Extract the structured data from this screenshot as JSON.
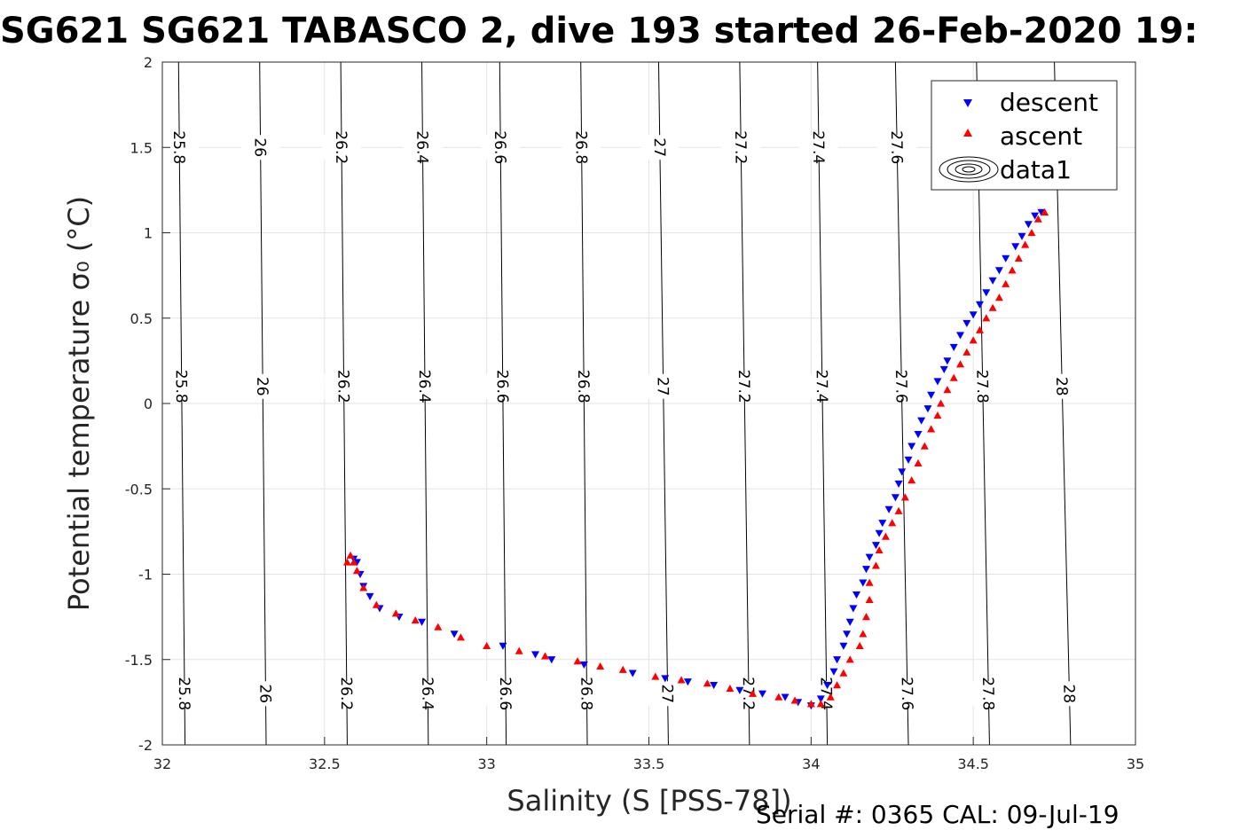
{
  "chart_data": {
    "type": "scatter",
    "title": "SG621 SG621 TABASCO 2, dive 193 started 26-Feb-2020 19:",
    "xlabel": "Salinity (S [PSS-78])",
    "ylabel": "Potential temperature σ₀ (°C)",
    "xlim": [
      32,
      35
    ],
    "ylim": [
      -2,
      2
    ],
    "x_ticks": [
      "32",
      "32.5",
      "33",
      "33.5",
      "34",
      "34.5",
      "35"
    ],
    "y_ticks": [
      "2",
      "1.5",
      "1",
      "0.5",
      "0",
      "-0.5",
      "-1",
      "-1.5",
      "-2"
    ],
    "grid": true,
    "legend_position": "top-right",
    "legend": [
      {
        "name": "descent",
        "marker": "triangle-down",
        "color": "#0000ff"
      },
      {
        "name": "ascent",
        "marker": "triangle-up",
        "color": "#ff0000"
      },
      {
        "name": "data1",
        "marker": "contour",
        "color": "#000000"
      }
    ],
    "isopycnals": {
      "levels": [
        25.8,
        26,
        26.2,
        26.4,
        26.6,
        26.8,
        27,
        27.2,
        27.4,
        27.6,
        27.8,
        28
      ],
      "labels": [
        "25.8",
        "26",
        "26.2",
        "26.4",
        "26.6",
        "26.8",
        "27",
        "27.2",
        "27.4",
        "27.6",
        "27.8",
        "28"
      ],
      "salinity_at_minus2": [
        32.07,
        32.32,
        32.57,
        32.82,
        33.06,
        33.31,
        33.56,
        33.81,
        34.05,
        34.3,
        34.55,
        34.8
      ],
      "salinity_at_2": [
        32.05,
        32.3,
        32.55,
        32.8,
        33.04,
        33.29,
        33.53,
        33.78,
        34.02,
        34.26,
        34.51,
        34.75
      ],
      "label_temps": [
        -1.7,
        0.1,
        1.5
      ]
    },
    "series": [
      {
        "name": "descent",
        "color": "#0000ff",
        "marker": "triangle-down",
        "points": [
          [
            34.71,
            1.12
          ],
          [
            34.69,
            1.1
          ],
          [
            34.67,
            1.05
          ],
          [
            34.65,
            0.98
          ],
          [
            34.63,
            0.92
          ],
          [
            34.6,
            0.85
          ],
          [
            34.58,
            0.78
          ],
          [
            34.56,
            0.72
          ],
          [
            34.54,
            0.65
          ],
          [
            34.52,
            0.58
          ],
          [
            34.5,
            0.52
          ],
          [
            34.48,
            0.47
          ],
          [
            34.46,
            0.4
          ],
          [
            34.44,
            0.33
          ],
          [
            34.42,
            0.25
          ],
          [
            34.41,
            0.2
          ],
          [
            34.39,
            0.13
          ],
          [
            34.37,
            0.05
          ],
          [
            34.36,
            -0.03
          ],
          [
            34.34,
            -0.1
          ],
          [
            34.33,
            -0.18
          ],
          [
            34.31,
            -0.25
          ],
          [
            34.3,
            -0.33
          ],
          [
            34.28,
            -0.4
          ],
          [
            34.27,
            -0.47
          ],
          [
            34.26,
            -0.55
          ],
          [
            34.24,
            -0.62
          ],
          [
            34.22,
            -0.7
          ],
          [
            34.21,
            -0.76
          ],
          [
            34.2,
            -0.83
          ],
          [
            34.18,
            -0.9
          ],
          [
            34.17,
            -0.97
          ],
          [
            34.16,
            -1.05
          ],
          [
            34.14,
            -1.12
          ],
          [
            34.13,
            -1.2
          ],
          [
            34.12,
            -1.28
          ],
          [
            34.11,
            -1.35
          ],
          [
            34.1,
            -1.42
          ],
          [
            34.08,
            -1.5
          ],
          [
            34.07,
            -1.57
          ],
          [
            34.05,
            -1.65
          ],
          [
            34.03,
            -1.73
          ],
          [
            34.0,
            -1.77
          ],
          [
            33.96,
            -1.75
          ],
          [
            33.92,
            -1.72
          ],
          [
            33.85,
            -1.7
          ],
          [
            33.78,
            -1.68
          ],
          [
            33.7,
            -1.65
          ],
          [
            33.62,
            -1.63
          ],
          [
            33.55,
            -1.61
          ],
          [
            33.45,
            -1.58
          ],
          [
            33.3,
            -1.53
          ],
          [
            33.2,
            -1.5
          ],
          [
            33.15,
            -1.47
          ],
          [
            33.05,
            -1.42
          ],
          [
            32.9,
            -1.35
          ],
          [
            32.8,
            -1.28
          ],
          [
            32.73,
            -1.25
          ],
          [
            32.67,
            -1.2
          ],
          [
            32.64,
            -1.13
          ],
          [
            32.62,
            -1.07
          ],
          [
            32.61,
            -1.0
          ],
          [
            32.6,
            -0.93
          ],
          [
            32.59,
            -0.91
          ]
        ]
      },
      {
        "name": "ascent",
        "color": "#ff0000",
        "marker": "triangle-up",
        "points": [
          [
            34.72,
            1.12
          ],
          [
            34.7,
            1.08
          ],
          [
            34.68,
            1.0
          ],
          [
            34.66,
            0.93
          ],
          [
            34.64,
            0.85
          ],
          [
            34.62,
            0.78
          ],
          [
            34.6,
            0.7
          ],
          [
            34.58,
            0.62
          ],
          [
            34.56,
            0.56
          ],
          [
            34.54,
            0.5
          ],
          [
            34.52,
            0.43
          ],
          [
            34.5,
            0.37
          ],
          [
            34.48,
            0.3
          ],
          [
            34.46,
            0.23
          ],
          [
            34.44,
            0.15
          ],
          [
            34.42,
            0.08
          ],
          [
            34.4,
            0.0
          ],
          [
            34.39,
            -0.07
          ],
          [
            34.37,
            -0.15
          ],
          [
            34.35,
            -0.25
          ],
          [
            34.33,
            -0.35
          ],
          [
            34.31,
            -0.45
          ],
          [
            34.29,
            -0.55
          ],
          [
            34.27,
            -0.63
          ],
          [
            34.25,
            -0.7
          ],
          [
            34.23,
            -0.78
          ],
          [
            34.21,
            -0.86
          ],
          [
            34.2,
            -0.95
          ],
          [
            34.18,
            -1.05
          ],
          [
            34.18,
            -1.15
          ],
          [
            34.17,
            -1.25
          ],
          [
            34.16,
            -1.35
          ],
          [
            34.15,
            -1.42
          ],
          [
            34.12,
            -1.5
          ],
          [
            34.1,
            -1.58
          ],
          [
            34.08,
            -1.65
          ],
          [
            34.06,
            -1.72
          ],
          [
            34.03,
            -1.76
          ],
          [
            34.0,
            -1.76
          ],
          [
            33.95,
            -1.74
          ],
          [
            33.9,
            -1.72
          ],
          [
            33.82,
            -1.7
          ],
          [
            33.75,
            -1.67
          ],
          [
            33.68,
            -1.64
          ],
          [
            33.6,
            -1.62
          ],
          [
            33.52,
            -1.6
          ],
          [
            33.42,
            -1.56
          ],
          [
            33.35,
            -1.54
          ],
          [
            33.28,
            -1.51
          ],
          [
            33.18,
            -1.48
          ],
          [
            33.1,
            -1.45
          ],
          [
            33.0,
            -1.42
          ],
          [
            32.92,
            -1.37
          ],
          [
            32.85,
            -1.31
          ],
          [
            32.78,
            -1.27
          ],
          [
            32.72,
            -1.23
          ],
          [
            32.66,
            -1.18
          ],
          [
            32.62,
            -1.08
          ],
          [
            32.6,
            -0.98
          ],
          [
            32.59,
            -0.93
          ],
          [
            32.58,
            -0.89
          ],
          [
            32.57,
            -0.93
          ]
        ]
      }
    ]
  },
  "footer": {
    "serial_text": "Serial #: 0365  CAL: 09-Jul-19"
  }
}
